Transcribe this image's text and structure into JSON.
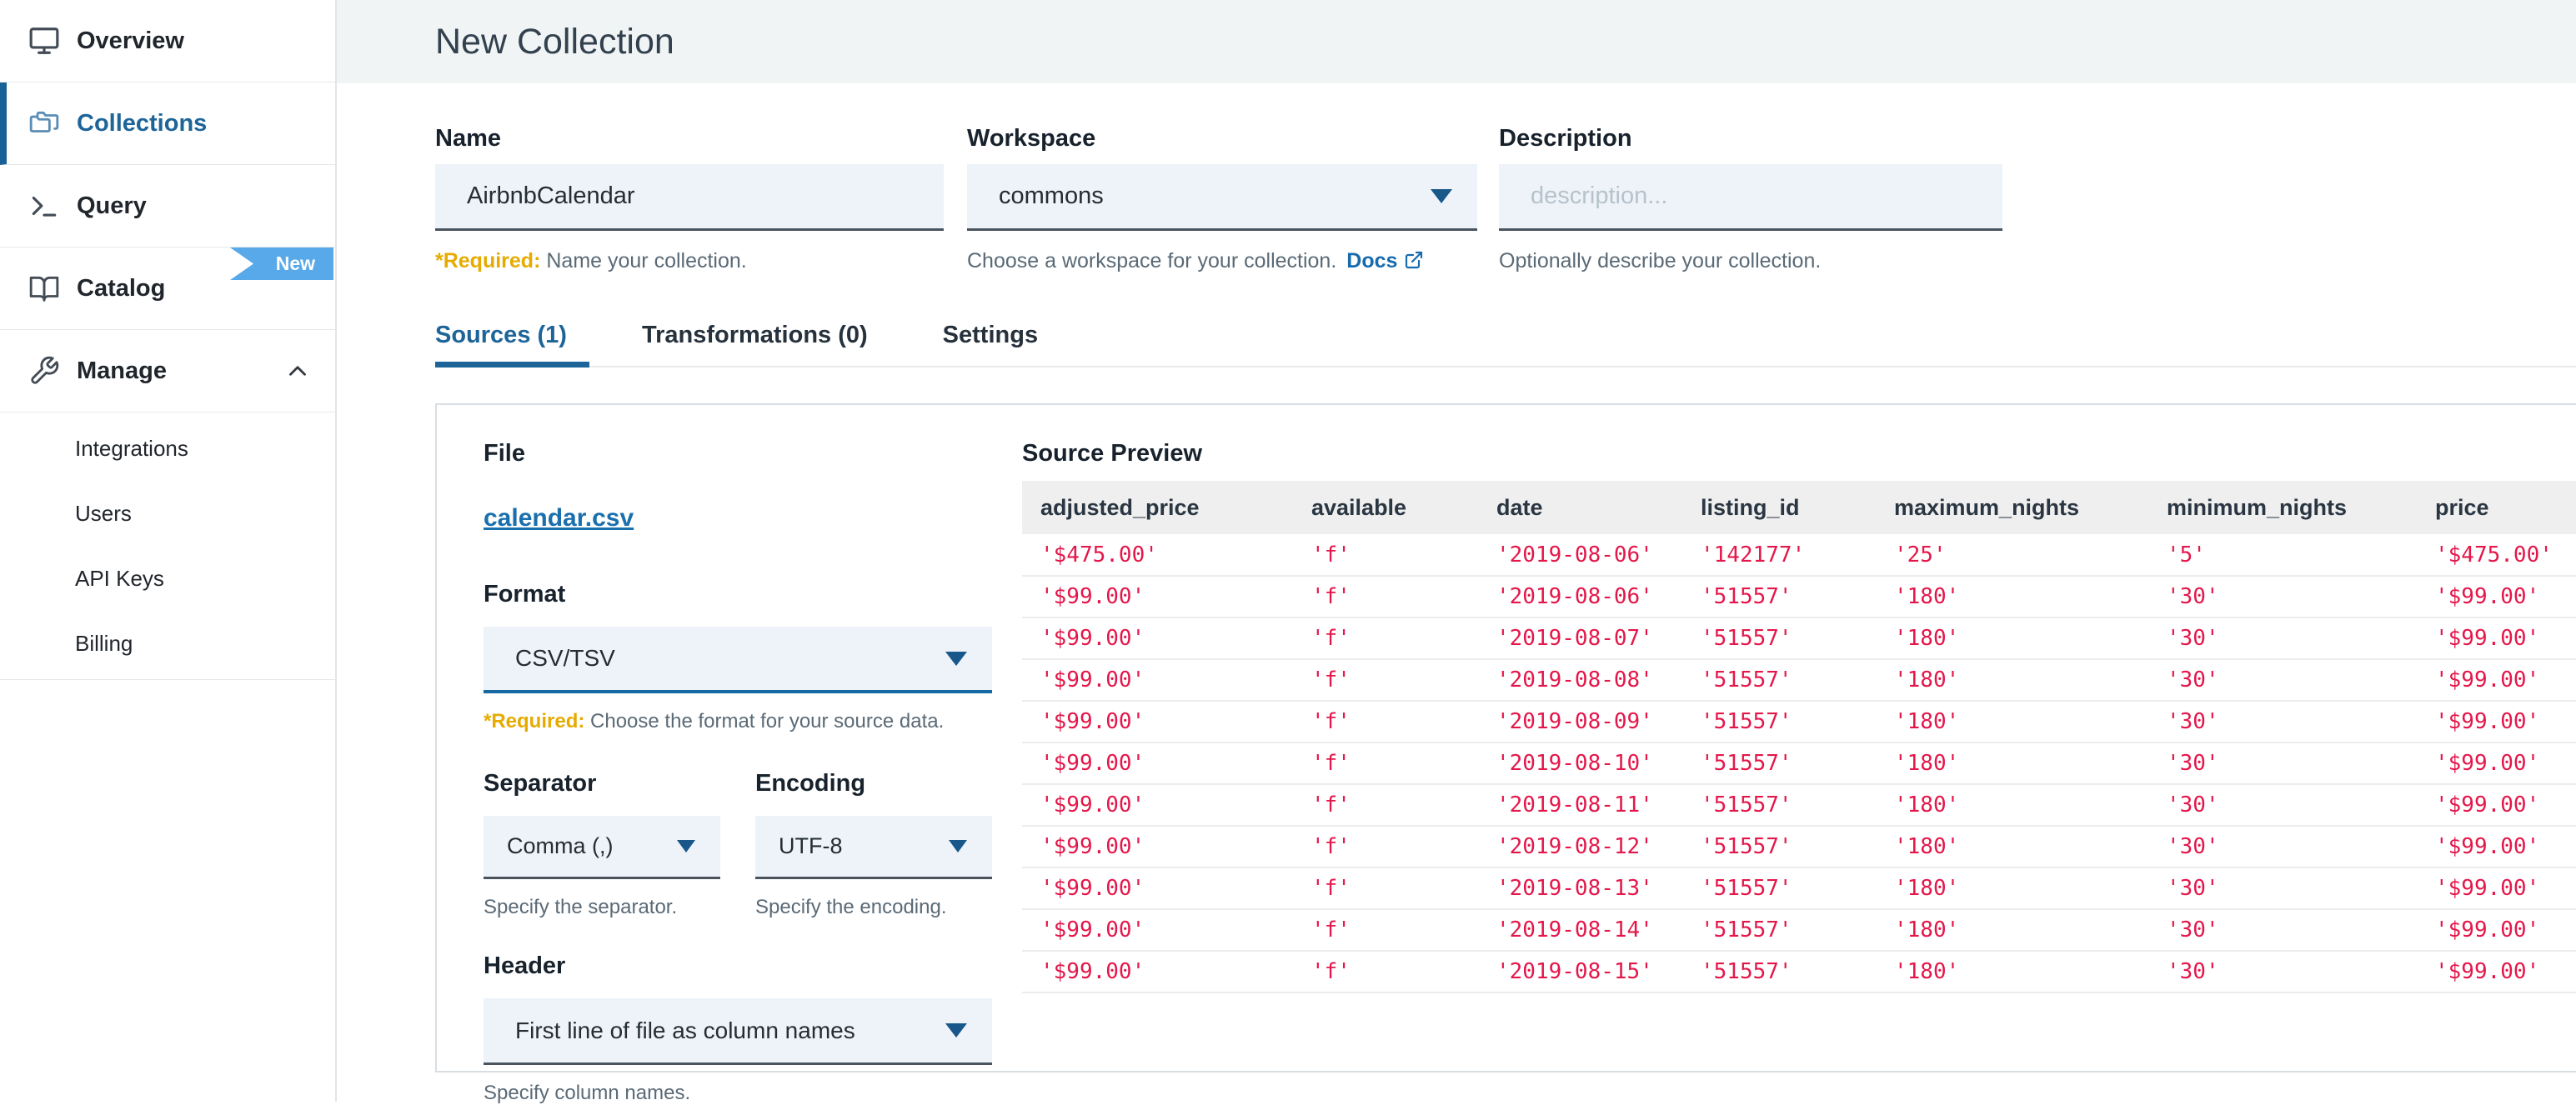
{
  "sidebar": {
    "items": [
      {
        "label": "Overview",
        "icon": "monitor"
      },
      {
        "label": "Collections",
        "icon": "folders",
        "active": true
      },
      {
        "label": "Query",
        "icon": "terminal"
      },
      {
        "label": "Catalog",
        "icon": "book",
        "badge": "New"
      },
      {
        "label": "Manage",
        "icon": "wrench",
        "expanded": true
      }
    ],
    "manage_children": [
      "Integrations",
      "Users",
      "API Keys",
      "Billing"
    ]
  },
  "header": {
    "title": "New Collection"
  },
  "form": {
    "name": {
      "label": "Name",
      "value": "AirbnbCalendar",
      "required_prefix": "*Required:",
      "helper": "Name your collection."
    },
    "workspace": {
      "label": "Workspace",
      "value": "commons",
      "helper": "Choose a workspace for your collection.",
      "docs_label": "Docs"
    },
    "description": {
      "label": "Description",
      "placeholder": "description...",
      "helper": "Optionally describe your collection."
    }
  },
  "tabs": [
    {
      "label": "Sources (1)",
      "active": true
    },
    {
      "label": "Transformations (0)",
      "active": false
    },
    {
      "label": "Settings",
      "active": false
    }
  ],
  "source": {
    "file_label": "File",
    "file_name": "calendar.csv",
    "format": {
      "label": "Format",
      "value": "CSV/TSV",
      "required_prefix": "*Required:",
      "helper": "Choose the format for your source data."
    },
    "separator": {
      "label": "Separator",
      "value": "Comma (,)",
      "helper": "Specify the separator."
    },
    "encoding": {
      "label": "Encoding",
      "value": "UTF-8",
      "helper": "Specify the encoding."
    },
    "header": {
      "label": "Header",
      "value": "First line of file as column names",
      "helper": "Specify column names."
    }
  },
  "preview": {
    "title": "Source Preview",
    "columns": [
      "adjusted_price",
      "available",
      "date",
      "listing_id",
      "maximum_nights",
      "minimum_nights",
      "price"
    ],
    "rows": [
      [
        "'$475.00'",
        "'f'",
        "'2019-08-06'",
        "'142177'",
        "'25'",
        "'5'",
        "'$475.00'"
      ],
      [
        "'$99.00'",
        "'f'",
        "'2019-08-06'",
        "'51557'",
        "'180'",
        "'30'",
        "'$99.00'"
      ],
      [
        "'$99.00'",
        "'f'",
        "'2019-08-07'",
        "'51557'",
        "'180'",
        "'30'",
        "'$99.00'"
      ],
      [
        "'$99.00'",
        "'f'",
        "'2019-08-08'",
        "'51557'",
        "'180'",
        "'30'",
        "'$99.00'"
      ],
      [
        "'$99.00'",
        "'f'",
        "'2019-08-09'",
        "'51557'",
        "'180'",
        "'30'",
        "'$99.00'"
      ],
      [
        "'$99.00'",
        "'f'",
        "'2019-08-10'",
        "'51557'",
        "'180'",
        "'30'",
        "'$99.00'"
      ],
      [
        "'$99.00'",
        "'f'",
        "'2019-08-11'",
        "'51557'",
        "'180'",
        "'30'",
        "'$99.00'"
      ],
      [
        "'$99.00'",
        "'f'",
        "'2019-08-12'",
        "'51557'",
        "'180'",
        "'30'",
        "'$99.00'"
      ],
      [
        "'$99.00'",
        "'f'",
        "'2019-08-13'",
        "'51557'",
        "'180'",
        "'30'",
        "'$99.00'"
      ],
      [
        "'$99.00'",
        "'f'",
        "'2019-08-14'",
        "'51557'",
        "'180'",
        "'30'",
        "'$99.00'"
      ],
      [
        "'$99.00'",
        "'f'",
        "'2019-08-15'",
        "'51557'",
        "'180'",
        "'30'",
        "'$99.00'"
      ]
    ]
  },
  "colors": {
    "accent_blue": "#1d6499",
    "link_blue": "#176bad",
    "badge_blue": "#57a9e9",
    "required_amber": "#e6ab00",
    "value_red": "#e4174a",
    "titlebar_bg": "#f0f4f5",
    "input_bg": "#edf3f9",
    "table_header_bg": "#efefef"
  }
}
